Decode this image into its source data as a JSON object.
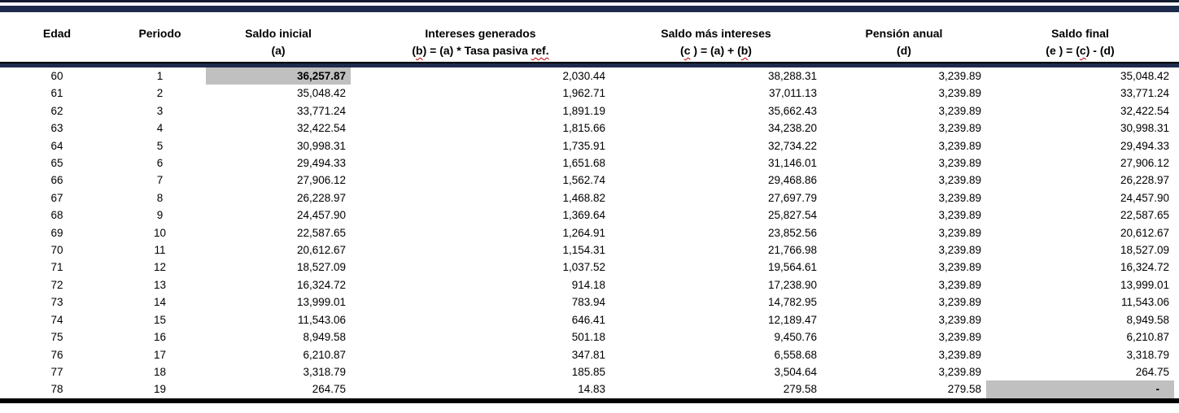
{
  "colors": {
    "accent_navy": "#1f2b4c",
    "top_rule": "#141c30",
    "highlight_gray": "#c0c0c0",
    "squiggle_red": "#c00000",
    "text": "#000000"
  },
  "table": {
    "zero_placeholder": "-",
    "header": {
      "columns": [
        {
          "line1": "Edad",
          "line2": ""
        },
        {
          "line1": "Periodo",
          "line2": ""
        },
        {
          "line1": "Saldo inicial",
          "line2": "(a)"
        },
        {
          "line1": "Intereses generados",
          "line2": [
            {
              "t": "("
            },
            {
              "t": "b",
              "sq": true
            },
            {
              "t": ") = (a) * Tasa pasiva "
            },
            {
              "t": "ref.",
              "sq": true
            }
          ]
        },
        {
          "line1": "Saldo más intereses",
          "line2": [
            {
              "t": "("
            },
            {
              "t": "c",
              "sq": true
            },
            {
              "t": " ) = (a) + ("
            },
            {
              "t": "b",
              "sq": true
            },
            {
              "t": ")"
            }
          ]
        },
        {
          "line1": "Pensión anual",
          "line2": "(d)"
        },
        {
          "line1": "Saldo final",
          "line2": [
            {
              "t": "(e ) = ("
            },
            {
              "t": "c",
              "sq": true
            },
            {
              "t": ") - (d)"
            }
          ]
        }
      ]
    },
    "rows": [
      [
        "60",
        "1",
        "36,257.87",
        "2,030.44",
        "38,288.31",
        "3,239.89",
        "35,048.42"
      ],
      [
        "61",
        "2",
        "35,048.42",
        "1,962.71",
        "37,011.13",
        "3,239.89",
        "33,771.24"
      ],
      [
        "62",
        "3",
        "33,771.24",
        "1,891.19",
        "35,662.43",
        "3,239.89",
        "32,422.54"
      ],
      [
        "63",
        "4",
        "32,422.54",
        "1,815.66",
        "34,238.20",
        "3,239.89",
        "30,998.31"
      ],
      [
        "64",
        "5",
        "30,998.31",
        "1,735.91",
        "32,734.22",
        "3,239.89",
        "29,494.33"
      ],
      [
        "65",
        "6",
        "29,494.33",
        "1,651.68",
        "31,146.01",
        "3,239.89",
        "27,906.12"
      ],
      [
        "66",
        "7",
        "27,906.12",
        "1,562.74",
        "29,468.86",
        "3,239.89",
        "26,228.97"
      ],
      [
        "67",
        "8",
        "26,228.97",
        "1,468.82",
        "27,697.79",
        "3,239.89",
        "24,457.90"
      ],
      [
        "68",
        "9",
        "24,457.90",
        "1,369.64",
        "25,827.54",
        "3,239.89",
        "22,587.65"
      ],
      [
        "69",
        "10",
        "22,587.65",
        "1,264.91",
        "23,852.56",
        "3,239.89",
        "20,612.67"
      ],
      [
        "70",
        "11",
        "20,612.67",
        "1,154.31",
        "21,766.98",
        "3,239.89",
        "18,527.09"
      ],
      [
        "71",
        "12",
        "18,527.09",
        "1,037.52",
        "19,564.61",
        "3,239.89",
        "16,324.72"
      ],
      [
        "72",
        "13",
        "16,324.72",
        "914.18",
        "17,238.90",
        "3,239.89",
        "13,999.01"
      ],
      [
        "73",
        "14",
        "13,999.01",
        "783.94",
        "14,782.95",
        "3,239.89",
        "11,543.06"
      ],
      [
        "74",
        "15",
        "11,543.06",
        "646.41",
        "12,189.47",
        "3,239.89",
        "8,949.58"
      ],
      [
        "75",
        "16",
        "8,949.58",
        "501.18",
        "9,450.76",
        "3,239.89",
        "6,210.87"
      ],
      [
        "76",
        "17",
        "6,210.87",
        "347.81",
        "6,558.68",
        "3,239.89",
        "3,318.79"
      ],
      [
        "77",
        "18",
        "3,318.79",
        "185.85",
        "3,504.64",
        "3,239.89",
        "264.75"
      ],
      [
        "78",
        "19",
        "264.75",
        "14.83",
        "279.58",
        "279.58",
        "-"
      ]
    ],
    "highlights": [
      {
        "row": 0,
        "col": 2,
        "bold": true
      },
      {
        "row": 18,
        "col": 6,
        "bold": false
      }
    ]
  }
}
